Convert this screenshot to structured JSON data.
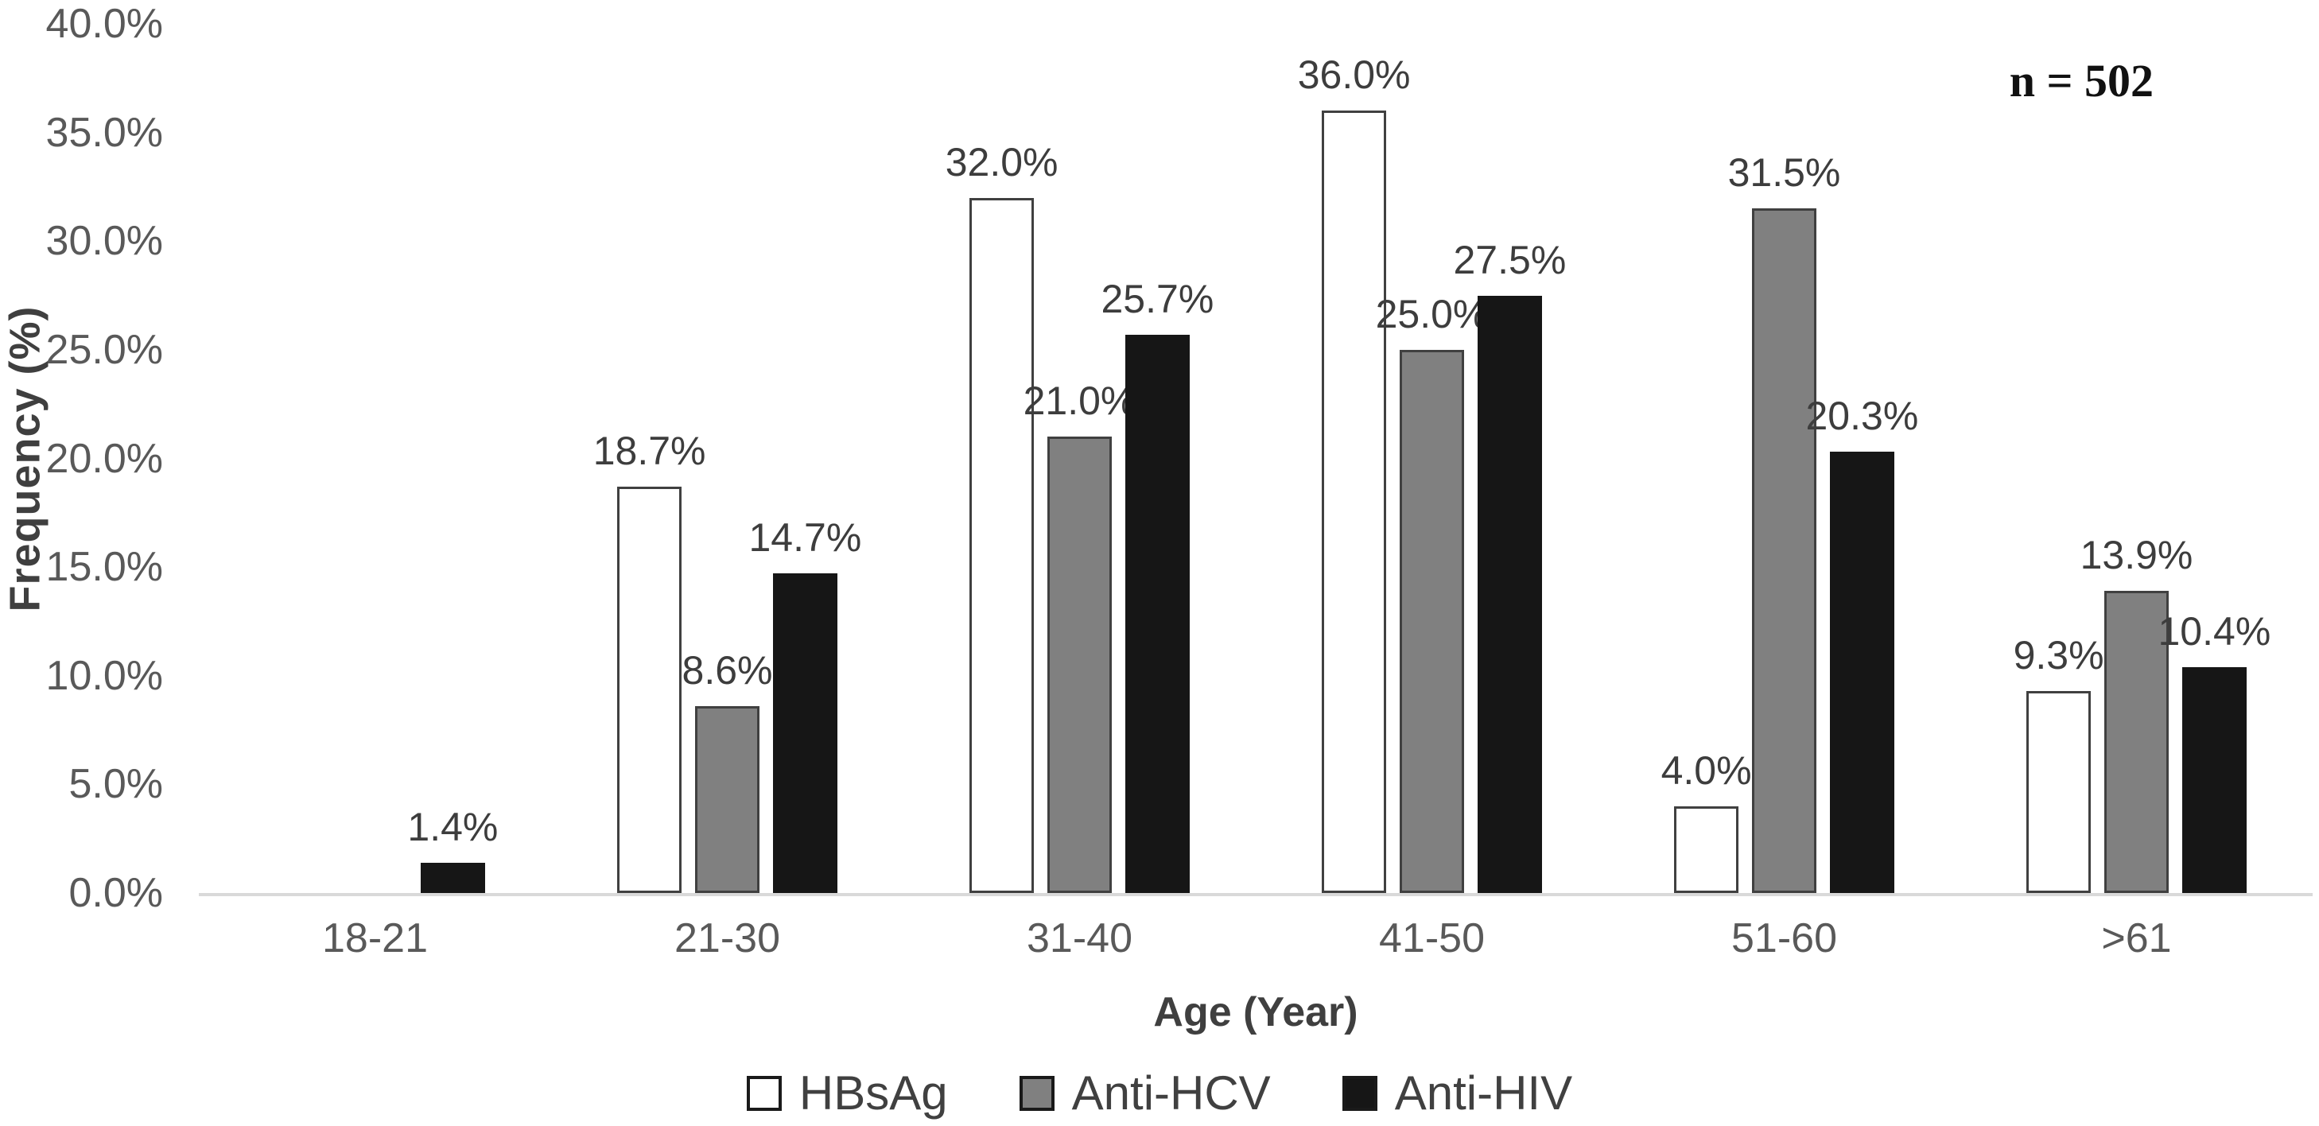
{
  "chart_data": {
    "type": "bar",
    "title": "",
    "xlabel": "Age (Year)",
    "ylabel": "Frequency (%)",
    "annotation": "n = 502",
    "categories": [
      "18-21",
      "21-30",
      "31-40",
      "41-50",
      "51-60",
      ">61"
    ],
    "series": [
      {
        "name": "HBsAg",
        "color": "#ffffff",
        "border": "#404040",
        "values": [
          0,
          18.7,
          32.0,
          36.0,
          4.0,
          9.3
        ],
        "labels": [
          "",
          "18.7%",
          "32.0%",
          "36.0%",
          "4.0%",
          "9.3%"
        ]
      },
      {
        "name": "Anti-HCV",
        "color": "#808080",
        "border": "#404040",
        "values": [
          0,
          8.6,
          21.0,
          25.0,
          31.5,
          13.9
        ],
        "labels": [
          "",
          "8.6%",
          "21.0%",
          "25.0%",
          "31.5%",
          "13.9%"
        ]
      },
      {
        "name": "Anti-HIV",
        "color": "#161616",
        "border": "#161616",
        "values": [
          1.4,
          14.7,
          25.7,
          27.5,
          20.3,
          10.4
        ],
        "labels": [
          "1.4%",
          "14.7%",
          "25.7%",
          "27.5%",
          "20.3%",
          "10.4%"
        ]
      }
    ],
    "ylim": [
      0,
      40
    ],
    "yticks": [
      "40.0%",
      "35.0%",
      "30.0%",
      "25.0%",
      "20.0%",
      "15.0%",
      "10.0%",
      "5.0%",
      "0.0%"
    ],
    "grid": false,
    "legend_position": "bottom",
    "colors": {
      "axis_line": "#d9d9d9",
      "tick_text": "#595959",
      "label_text": "#3d3d3d",
      "annotation_text": "#111111"
    }
  }
}
